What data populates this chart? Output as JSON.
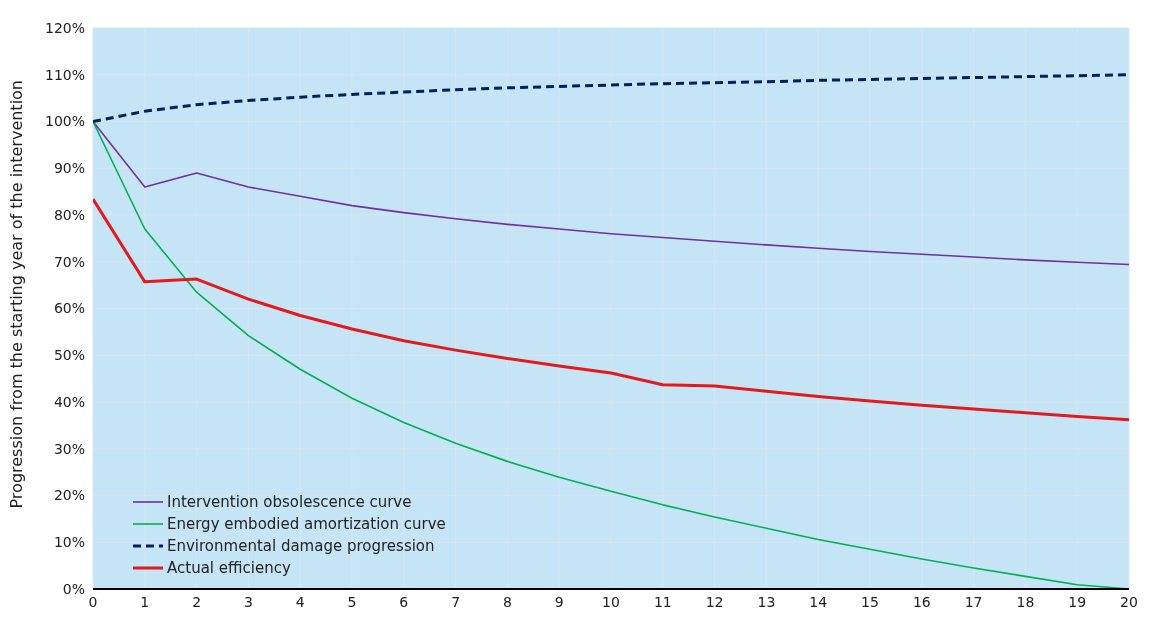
{
  "chart_data": {
    "type": "line",
    "ylabel": "Progression from the starting year of the intervention",
    "x": [
      0,
      1,
      2,
      3,
      4,
      5,
      6,
      7,
      8,
      9,
      10,
      11,
      12,
      13,
      14,
      15,
      16,
      17,
      18,
      19,
      20
    ],
    "xlim": [
      0,
      20
    ],
    "xticks": [
      0,
      1,
      2,
      3,
      4,
      5,
      6,
      7,
      8,
      9,
      10,
      11,
      12,
      13,
      14,
      15,
      16,
      17,
      18,
      19,
      20
    ],
    "ylim": [
      0,
      120
    ],
    "yticks": [
      {
        "value": 0,
        "label": "0%"
      },
      {
        "value": 10,
        "label": "10%"
      },
      {
        "value": 20,
        "label": "20%"
      },
      {
        "value": 30,
        "label": "30%"
      },
      {
        "value": 40,
        "label": "40%"
      },
      {
        "value": 50,
        "label": "50%"
      },
      {
        "value": 60,
        "label": "60%"
      },
      {
        "value": 70,
        "label": "70%"
      },
      {
        "value": 80,
        "label": "80%"
      },
      {
        "value": 90,
        "label": "90%"
      },
      {
        "value": 100,
        "label": "100%"
      },
      {
        "value": 110,
        "label": "110%"
      },
      {
        "value": 120,
        "label": "120%"
      }
    ],
    "grid": true,
    "legend": "bottom left",
    "marker": "none",
    "series": [
      {
        "name": "Intervention obsolescence curve",
        "color": "#7030a0",
        "line_style": "solid",
        "values": [
          100,
          86,
          89,
          86,
          84,
          82,
          80.5,
          79.2,
          78,
          77,
          76,
          75.2,
          74.4,
          73.6,
          72.9,
          72.2,
          71.6,
          71,
          70.4,
          69.9,
          69.4
        ]
      },
      {
        "name": "Energy embodied amortization curve",
        "color": "#00b050",
        "line_style": "solid",
        "values": [
          100,
          77,
          63.5,
          54.2,
          47,
          40.8,
          35.6,
          31.2,
          27.3,
          23.9,
          20.9,
          18,
          15.4,
          13,
          10.6,
          8.5,
          6.4,
          4.5,
          2.7,
          0.9,
          0
        ]
      },
      {
        "name": "Environmental damage progression",
        "color": "#002060",
        "line_style": "dashed",
        "values": [
          100,
          102.2,
          103.6,
          104.5,
          105.2,
          105.8,
          106.3,
          106.8,
          107.2,
          107.5,
          107.8,
          108.1,
          108.3,
          108.5,
          108.8,
          109,
          109.2,
          109.4,
          109.6,
          109.8,
          110
        ]
      },
      {
        "name": "Actual efficiency",
        "color": "#e31a1c",
        "line_style": "solid",
        "values": [
          83.4,
          65.7,
          66.3,
          62,
          58.5,
          55.6,
          53.1,
          51.1,
          49.3,
          47.7,
          46.2,
          43.7,
          43.4,
          42.3,
          41.2,
          40.2,
          39.3,
          38.5,
          37.7,
          36.9,
          36.2
        ]
      }
    ]
  }
}
